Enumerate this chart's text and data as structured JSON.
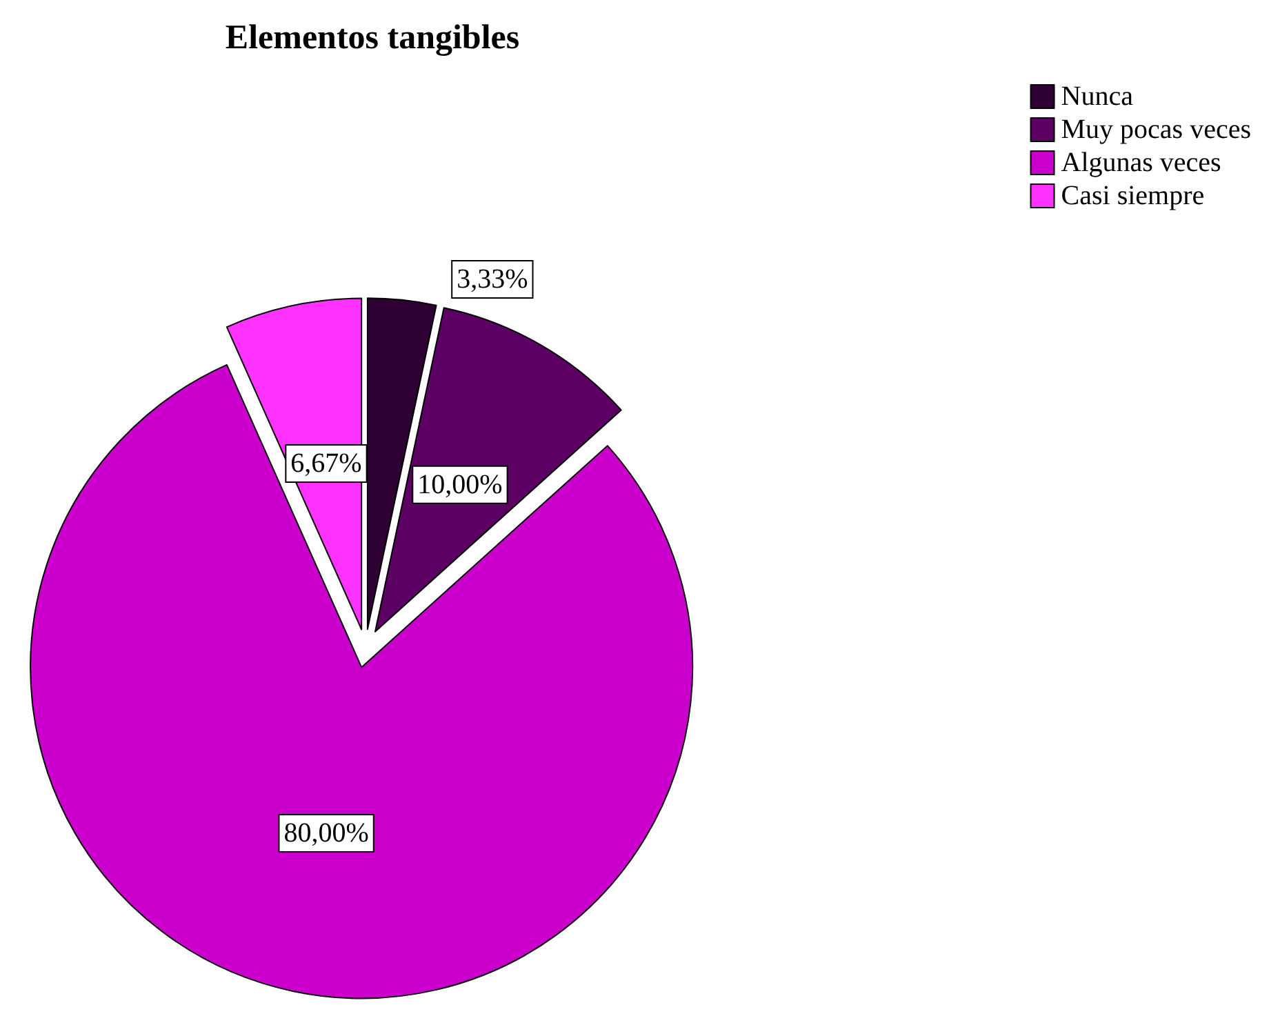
{
  "chart_data": {
    "type": "pie",
    "title": "Elementos tangibles",
    "categories": [
      "Nunca",
      "Muy pocas veces",
      "Algunas veces",
      "Casi siempre"
    ],
    "values": [
      3.33,
      10.0,
      80.0,
      6.67
    ],
    "colors": [
      "#2e0034",
      "#5c0063",
      "#cc00cc",
      "#ff33ff"
    ],
    "value_labels": [
      "3,33%",
      "10,00%",
      "80,00%",
      "6,67%"
    ],
    "legend": "top right"
  }
}
